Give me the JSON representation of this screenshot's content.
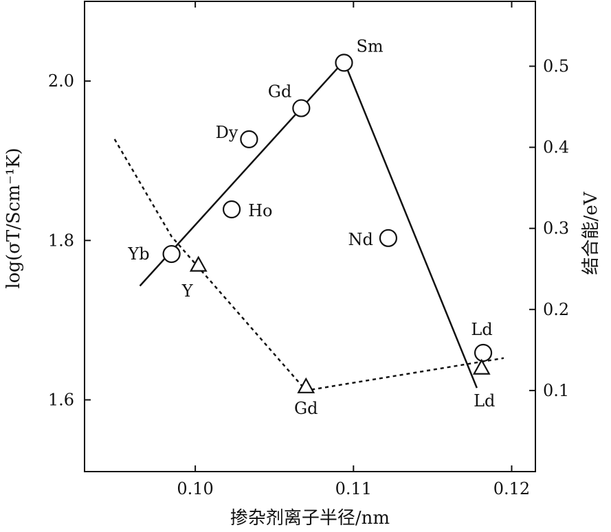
{
  "chart_data": {
    "type": "line",
    "title": "",
    "xlabel": "掺杂剂离子半径/nm",
    "ylabel_left": "log(σT/Scm⁻¹K)",
    "ylabel_right": "结合能/eV",
    "xlim": [
      0.093,
      0.1215
    ],
    "ylim_left": [
      1.51,
      2.1
    ],
    "ylim_right": [
      0.0,
      0.58
    ],
    "x_ticks": [
      0.1,
      0.11,
      0.12
    ],
    "x_tick_labels": [
      "0.10",
      "0.11",
      "0.12"
    ],
    "y_left_ticks": [
      1.6,
      1.8,
      2.0
    ],
    "y_left_tick_labels": [
      "1.6",
      "1.8",
      "2.0"
    ],
    "y_right_ticks": [
      0.1,
      0.2,
      0.3,
      0.4,
      0.5
    ],
    "y_right_tick_labels": [
      "0.1",
      "0.2",
      "0.3",
      "0.4",
      "0.5"
    ],
    "grid": false,
    "conductivity_points": [
      {
        "label": "Yb",
        "x": 0.0985,
        "y": 1.783
      },
      {
        "label": "Ho",
        "x": 0.1023,
        "y": 1.839
      },
      {
        "label": "Dy",
        "x": 0.1034,
        "y": 1.927
      },
      {
        "label": "Gd",
        "x": 0.1067,
        "y": 1.966
      },
      {
        "label": "Sm",
        "x": 0.1094,
        "y": 2.023
      },
      {
        "label": "Nd",
        "x": 0.1122,
        "y": 1.803
      },
      {
        "label": "Ld",
        "x": 0.1182,
        "y": 1.659
      }
    ],
    "conductivity_line": {
      "x": [
        0.0965,
        0.1094,
        0.1178
      ],
      "y": [
        1.743,
        2.025,
        1.615
      ]
    },
    "binding_energy_points": [
      {
        "label": "Y",
        "x": 0.1002,
        "y": 0.255
      },
      {
        "label": "Gd",
        "x": 0.107,
        "y": 0.105
      },
      {
        "label": "Ld",
        "x": 0.1181,
        "y": 0.128
      }
    ],
    "binding_energy_line": {
      "x": [
        0.0949,
        0.0985,
        0.107,
        0.1195
      ],
      "y": [
        0.41,
        0.29,
        0.1,
        0.14
      ]
    }
  }
}
